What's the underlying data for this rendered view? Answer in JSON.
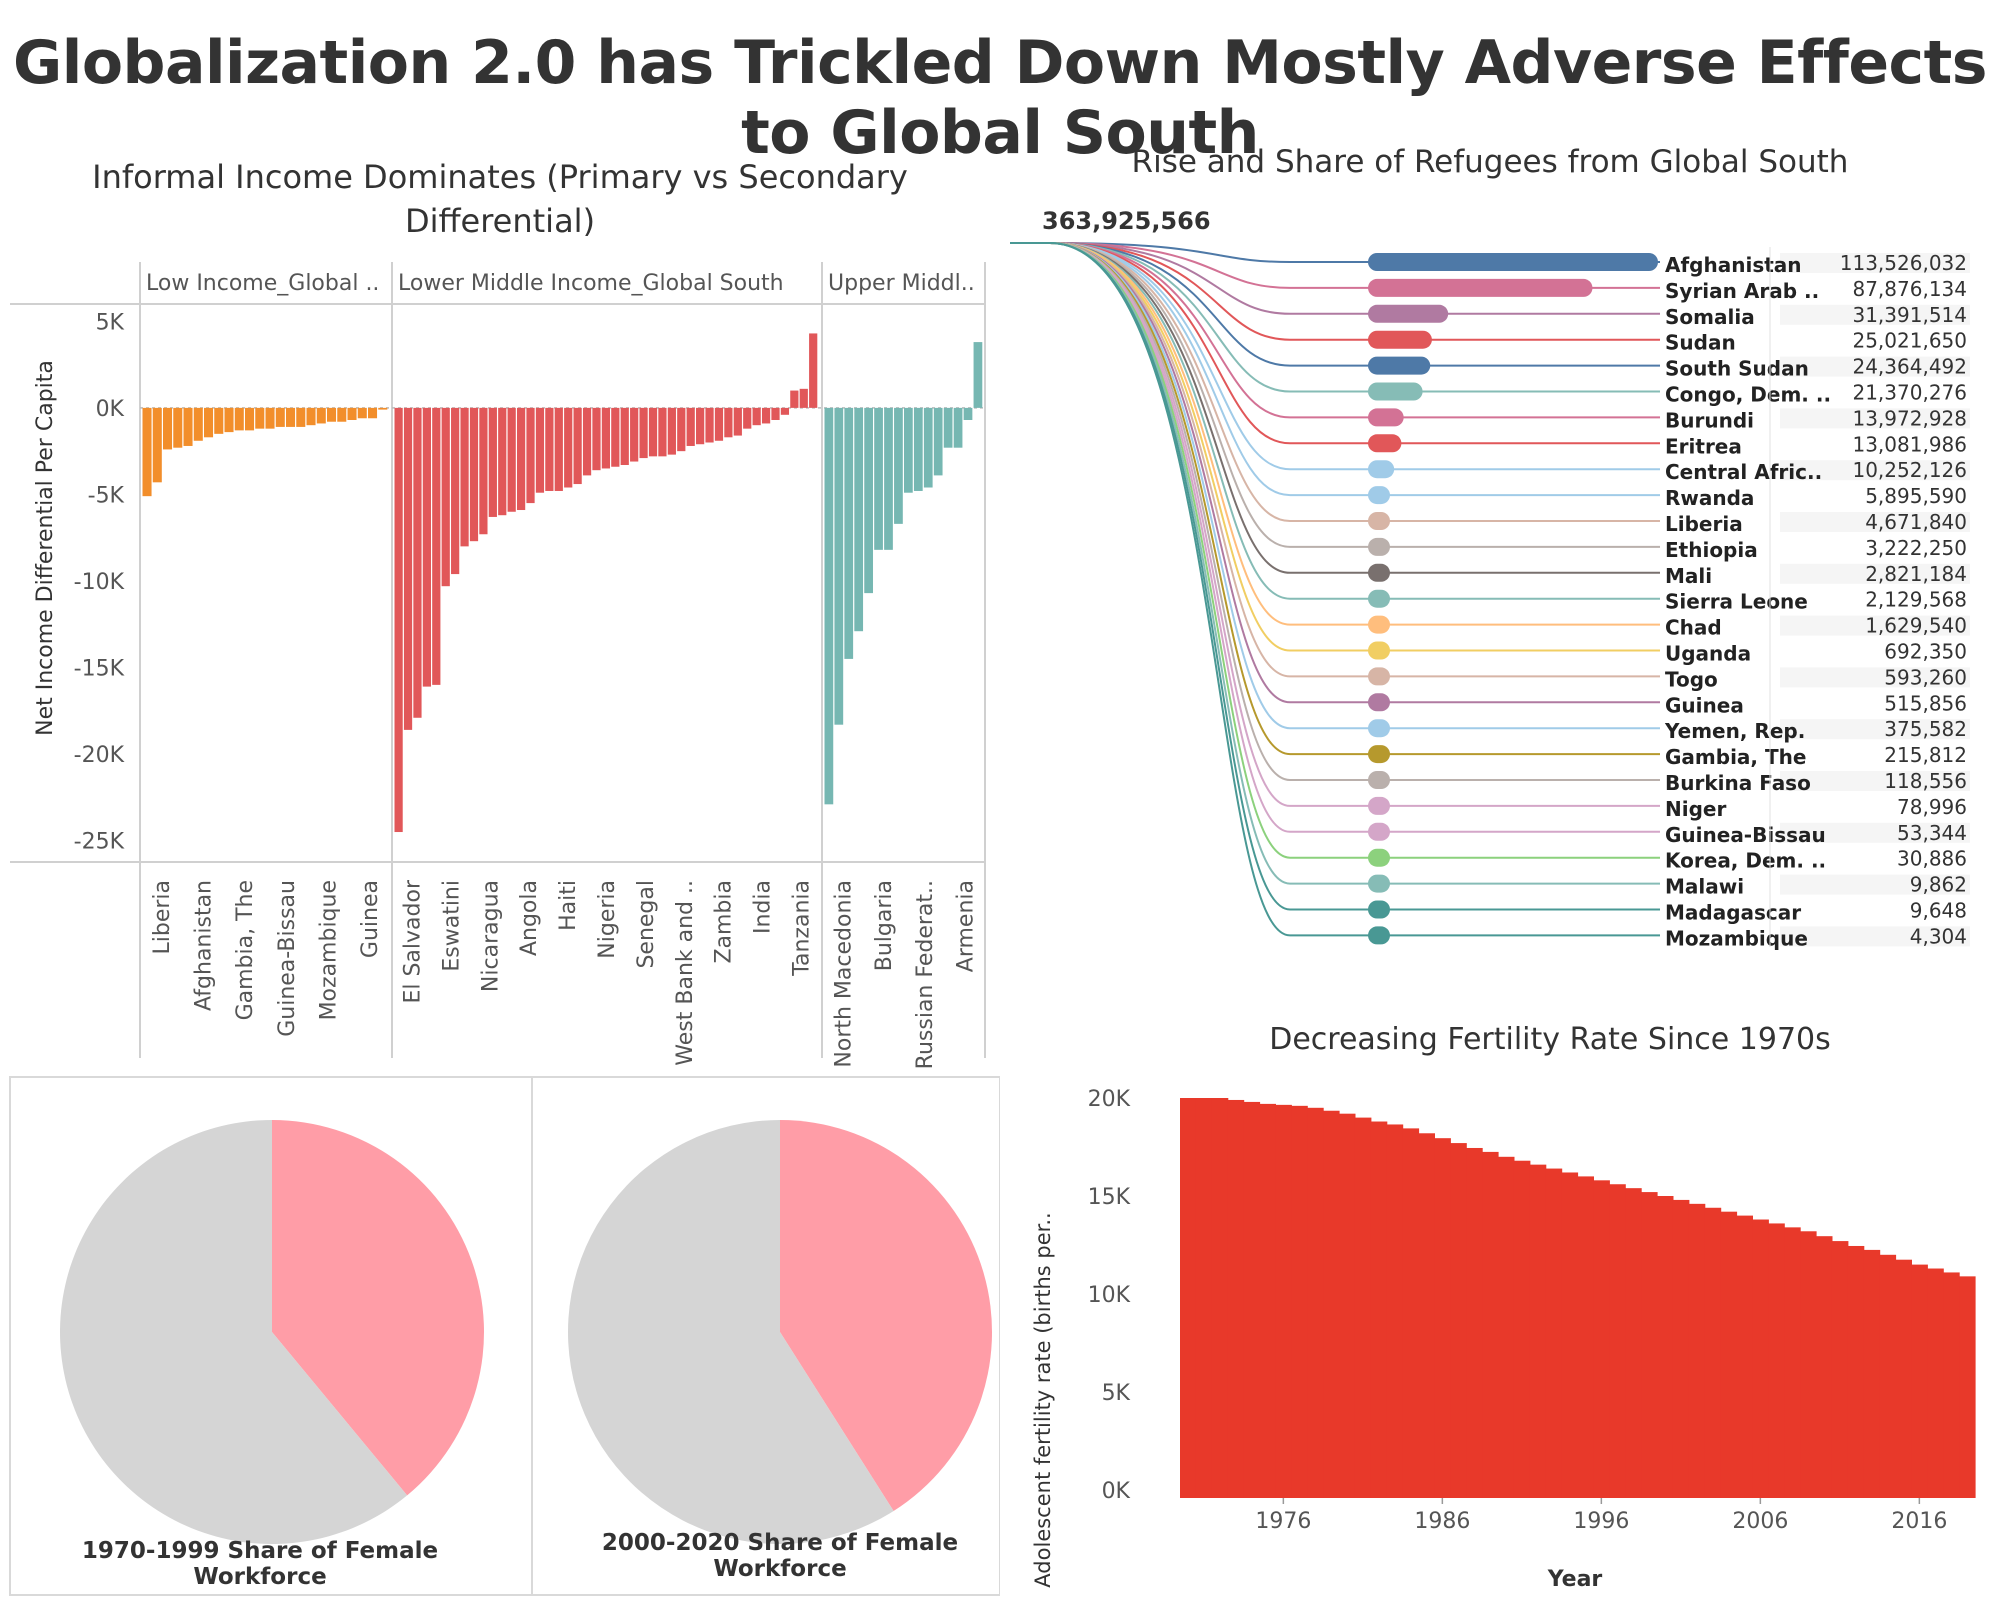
{
  "title": "Globalization 2.0 has Trickled Down Mostly Adverse Effects to Global South",
  "panels": {
    "income": {
      "title": "Informal Income Dominates (Primary vs Secondary Differential)",
      "ylabel": "Net Income Differential Per Capita",
      "y_ticks": [
        "5K",
        "0K",
        "-5K",
        "-10K",
        "-15K",
        "-20K",
        "-25K"
      ]
    },
    "refugees": {
      "title": "Rise and Share of Refugees from Global South",
      "total_label": "363,925,566"
    },
    "fertility": {
      "title": "Decreasing Fertility Rate Since 1970s",
      "ylabel": "Adolescent fertility rate (births per..",
      "xlabel": "Year",
      "y_ticks": [
        "20K",
        "15K",
        "10K",
        "5K",
        "0K"
      ],
      "x_ticks": [
        "1976",
        "1986",
        "1996",
        "2006",
        "2016"
      ]
    },
    "pies": {
      "labels": [
        "1970-1999 Share of Female Workforce",
        "2000-2020 Share of Female Workforce"
      ]
    }
  },
  "chart_data": [
    {
      "type": "bar",
      "name": "income",
      "title": "Informal Income Dominates (Primary vs Secondary Differential)",
      "ylabel": "Net Income Differential Per Capita",
      "ylim": [
        -26000,
        6000
      ],
      "colors": {
        "low": "#f28e2b",
        "lower_middle": "#e15759",
        "upper_middle": "#76b7b2"
      },
      "groups": [
        {
          "label": "Low Income_Global ..",
          "visible_tick_labels": [
            "Liberia",
            "Afghanistan",
            "Gambia, The",
            "Guinea-Bissau",
            "Mozambique",
            "Guinea"
          ],
          "values": [
            -5100,
            -4300,
            -2400,
            -2300,
            -2200,
            -1900,
            -1700,
            -1500,
            -1400,
            -1300,
            -1300,
            -1200,
            -1200,
            -1100,
            -1100,
            -1100,
            -1000,
            -900,
            -800,
            -800,
            -700,
            -600,
            -600,
            -100
          ]
        },
        {
          "label": "Lower Middle Income_Global South",
          "visible_tick_labels": [
            "El Salvador",
            "Eswatini",
            "Nicaragua",
            "Angola",
            "Haiti",
            "Nigeria",
            "Senegal",
            "West Bank and ..",
            "Zambia",
            "India",
            "Tanzania"
          ],
          "values": [
            -24500,
            -18600,
            -17900,
            -16100,
            -16000,
            -10300,
            -9600,
            -8000,
            -7700,
            -7300,
            -6300,
            -6200,
            -6000,
            -5900,
            -5500,
            -4900,
            -4800,
            -4800,
            -4600,
            -4400,
            -3900,
            -3600,
            -3500,
            -3400,
            -3300,
            -3100,
            -2900,
            -2800,
            -2800,
            -2700,
            -2500,
            -2200,
            -2100,
            -2000,
            -1900,
            -1700,
            -1600,
            -1200,
            -1000,
            -900,
            -700,
            -400,
            1000,
            1100,
            4300
          ]
        },
        {
          "label": "Upper Middl..",
          "visible_tick_labels": [
            "North Macedonia",
            "Bulgaria",
            "Russian Federat..",
            "Armenia"
          ],
          "values": [
            -22900,
            -18300,
            -14500,
            -12900,
            -10700,
            -8200,
            -8200,
            -6700,
            -4900,
            -4800,
            -4600,
            -3900,
            -2300,
            -2300,
            -700,
            3800
          ]
        }
      ]
    },
    {
      "type": "sankey",
      "name": "refugees",
      "title": "Rise and Share of Refugees from Global South",
      "total": 363925566,
      "series": [
        {
          "name": "Afghanistan",
          "value": 113526032,
          "label": "113,526,032",
          "color": "#4e79a7"
        },
        {
          "name": "Syrian Arab ..",
          "value": 87876134,
          "label": "87,876,134",
          "color": "#d37295"
        },
        {
          "name": "Somalia",
          "value": 31391514,
          "label": "31,391,514",
          "color": "#b07aa1"
        },
        {
          "name": "Sudan",
          "value": 25021650,
          "label": "25,021,650",
          "color": "#e15759"
        },
        {
          "name": "South Sudan",
          "value": 24364492,
          "label": "24,364,492",
          "color": "#4e79a7"
        },
        {
          "name": "Congo, Dem. ..",
          "value": 21370276,
          "label": "21,370,276",
          "color": "#86bcb6"
        },
        {
          "name": "Burundi",
          "value": 13972928,
          "label": "13,972,928",
          "color": "#d37295"
        },
        {
          "name": "Eritrea",
          "value": 13081986,
          "label": "13,081,986",
          "color": "#e15759"
        },
        {
          "name": "Central Afric..",
          "value": 10252126,
          "label": "10,252,126",
          "color": "#a0cbe8"
        },
        {
          "name": "Rwanda",
          "value": 5895590,
          "label": "5,895,590",
          "color": "#a0cbe8"
        },
        {
          "name": "Liberia",
          "value": 4671840,
          "label": "4,671,840",
          "color": "#d7b5a6"
        },
        {
          "name": "Ethiopia",
          "value": 3222250,
          "label": "3,222,250",
          "color": "#bab0ac"
        },
        {
          "name": "Mali",
          "value": 2821184,
          "label": "2,821,184",
          "color": "#79706e"
        },
        {
          "name": "Sierra Leone",
          "value": 2129568,
          "label": "2,129,568",
          "color": "#86bcb6"
        },
        {
          "name": "Chad",
          "value": 1629540,
          "label": "1,629,540",
          "color": "#ffbe7d"
        },
        {
          "name": "Uganda",
          "value": 692350,
          "label": "692,350",
          "color": "#f1ce63"
        },
        {
          "name": "Togo",
          "value": 593260,
          "label": "593,260",
          "color": "#d7b5a6"
        },
        {
          "name": "Guinea",
          "value": 515856,
          "label": "515,856",
          "color": "#b07aa1"
        },
        {
          "name": "Yemen, Rep.",
          "value": 375582,
          "label": "375,582",
          "color": "#a0cbe8"
        },
        {
          "name": "Gambia, The",
          "value": 215812,
          "label": "215,812",
          "color": "#b6992d"
        },
        {
          "name": "Burkina Faso",
          "value": 118556,
          "label": "118,556",
          "color": "#bab0ac"
        },
        {
          "name": "Niger",
          "value": 78996,
          "label": "78,996",
          "color": "#d4a6c8"
        },
        {
          "name": "Guinea-Bissau",
          "value": 53344,
          "label": "53,344",
          "color": "#d4a6c8"
        },
        {
          "name": "Korea, Dem. ..",
          "value": 30886,
          "label": "30,886",
          "color": "#8cd17d"
        },
        {
          "name": "Malawi",
          "value": 9862,
          "label": "9,862",
          "color": "#86bcb6"
        },
        {
          "name": "Madagascar",
          "value": 9648,
          "label": "9,648",
          "color": "#499894"
        },
        {
          "name": "Mozambique",
          "value": 4304,
          "label": "4,304",
          "color": "#499894"
        }
      ]
    },
    {
      "type": "area",
      "name": "fertility",
      "title": "Decreasing Fertility Rate Since 1970s",
      "xlabel": "Year",
      "ylabel": "Adolescent fertility rate (births per..",
      "ylim": [
        0,
        20000
      ],
      "color": "#e8392a",
      "x_range": [
        1970,
        2020
      ],
      "step_years": [
        1970,
        1971,
        1972,
        1973,
        1974,
        1975,
        1976,
        1977,
        1978,
        1979,
        1980,
        1981,
        1982,
        1983,
        1984,
        1985,
        1986,
        1987,
        1988,
        1989,
        1990,
        1991,
        1992,
        1993,
        1994,
        1995,
        1996,
        1997,
        1998,
        1999,
        2000,
        2001,
        2002,
        2003,
        2004,
        2005,
        2006,
        2007,
        2008,
        2009,
        2010,
        2011,
        2012,
        2013,
        2014,
        2015,
        2016,
        2017,
        2018,
        2019
      ],
      "values": [
        20000,
        20000,
        20000,
        19900,
        19800,
        19700,
        19650,
        19600,
        19500,
        19350,
        19200,
        19000,
        18800,
        18650,
        18450,
        18200,
        17950,
        17700,
        17450,
        17250,
        17000,
        16800,
        16600,
        16400,
        16200,
        16000,
        15800,
        15600,
        15400,
        15200,
        15000,
        14800,
        14600,
        14400,
        14200,
        14000,
        13800,
        13600,
        13400,
        13200,
        12950,
        12700,
        12450,
        12250,
        12000,
        11750,
        11500,
        11300,
        11100,
        10900
      ]
    },
    {
      "type": "pie",
      "name": "female-workforce-1970-1999",
      "label": "1970-1999 Share of Female Workforce",
      "slices": [
        {
          "share": 0.39,
          "color": "#ff9da7"
        },
        {
          "share": 0.61,
          "color": "#d5d5d5"
        }
      ]
    },
    {
      "type": "pie",
      "name": "female-workforce-2000-2020",
      "label": "2000-2020 Share of Female Workforce",
      "slices": [
        {
          "share": 0.41,
          "color": "#ff9da7"
        },
        {
          "share": 0.59,
          "color": "#d5d5d5"
        }
      ]
    }
  ]
}
